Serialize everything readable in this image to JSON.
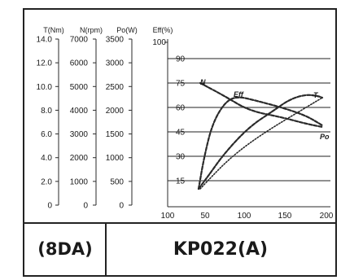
{
  "chart_data": {
    "type": "line",
    "axes": [
      {
        "label": "T(Nm)",
        "ticks": [
          "0",
          "2.0",
          "4.0",
          "6.0",
          "8.0",
          "10.0",
          "12.0",
          "14.0"
        ],
        "range": [
          0,
          14
        ]
      },
      {
        "label": "N(rpm)",
        "ticks": [
          "0",
          "1000",
          "2000",
          "3000",
          "4000",
          "5000",
          "6000",
          "7000"
        ],
        "range": [
          0,
          7000
        ]
      },
      {
        "label": "Po(W)",
        "ticks": [
          "0",
          "500",
          "1000",
          "1500",
          "2000",
          "2500",
          "3000",
          "3500"
        ],
        "range": [
          0,
          3500
        ]
      },
      {
        "label": "Eff(%)",
        "ticks": [
          "15",
          "30",
          "45",
          "60",
          "75",
          "90",
          "100"
        ],
        "range": [
          0,
          100
        ]
      }
    ],
    "x_ticks": [
      "100",
      "50",
      "100",
      "150",
      "200"
    ],
    "x_range": [
      0,
      200
    ],
    "grid": true,
    "series": [
      {
        "name": "N",
        "x": [
          40,
          70,
          100,
          140,
          170,
          190
        ],
        "y": [
          75,
          67,
          58,
          54,
          50,
          48
        ],
        "style": "dashed"
      },
      {
        "name": "Eff",
        "x": [
          38,
          45,
          55,
          70,
          85,
          110,
          140,
          170,
          190
        ],
        "y": [
          10,
          30,
          50,
          63,
          67,
          64,
          60,
          55,
          49
        ],
        "style": "dashed"
      },
      {
        "name": "T",
        "x": [
          40,
          55,
          75,
          100,
          130,
          160,
          180,
          190
        ],
        "y": [
          10,
          18,
          28,
          38,
          48,
          57,
          63,
          66
        ],
        "style": "dotted"
      },
      {
        "name": "Po",
        "x": [
          38,
          50,
          70,
          100,
          130,
          150,
          170,
          185,
          190
        ],
        "y": [
          10,
          18,
          32,
          48,
          58,
          65,
          68,
          67,
          66
        ],
        "style": "dashed"
      }
    ]
  },
  "labels": {
    "motor_code": "(8DA)",
    "model": "KP022(A)"
  },
  "colors": {
    "line": "#2a2a2a",
    "text": "#1a1a1a",
    "grid": "#222222"
  }
}
